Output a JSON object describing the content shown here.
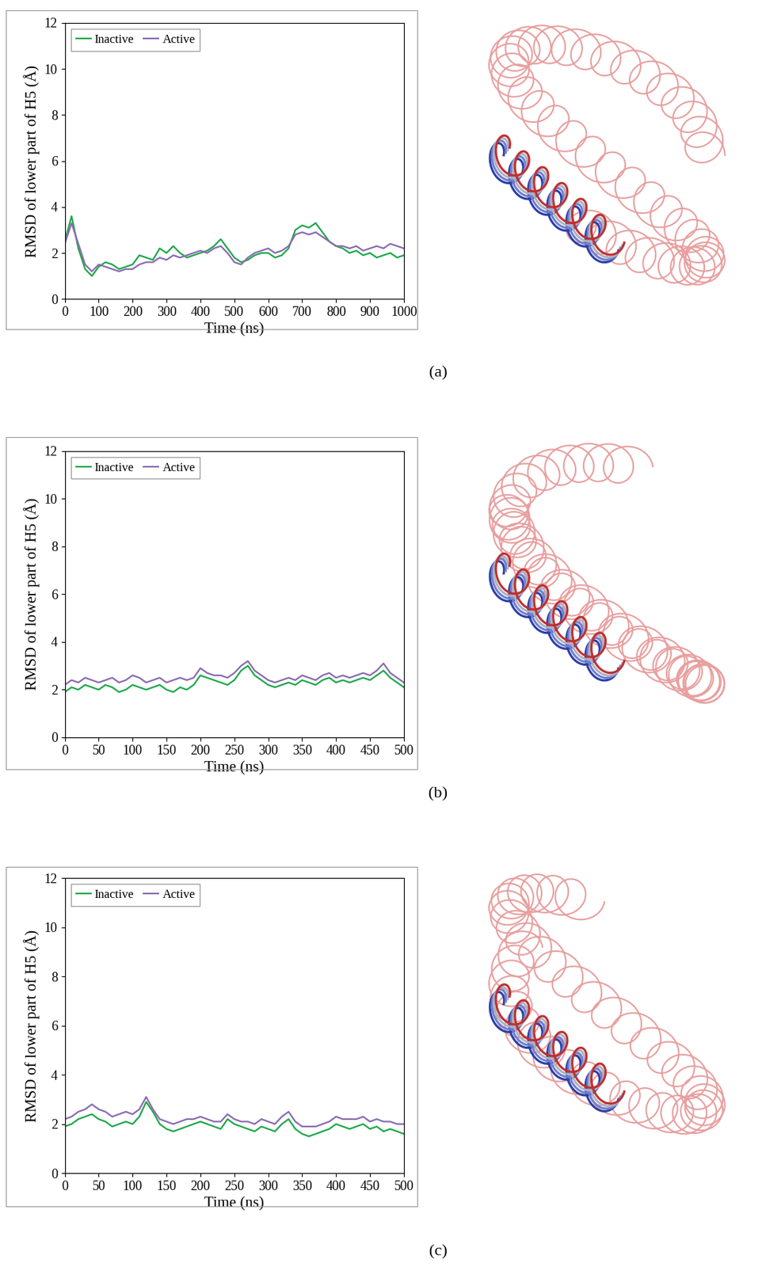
{
  "chart_data": [
    {
      "type": "line",
      "annotation": "(a)",
      "x_label": "Time (ns)",
      "y_label": "RMSD of lower part of H5 (Å)",
      "x": [
        0,
        20,
        40,
        60,
        80,
        100,
        120,
        140,
        160,
        180,
        200,
        220,
        240,
        260,
        280,
        300,
        320,
        340,
        360,
        380,
        400,
        420,
        440,
        460,
        480,
        500,
        520,
        540,
        560,
        580,
        600,
        620,
        640,
        660,
        680,
        700,
        720,
        740,
        760,
        780,
        800,
        820,
        840,
        860,
        880,
        900,
        920,
        940,
        960,
        980,
        1000
      ],
      "series": [
        {
          "name": "Inactive",
          "color": "#1fa84a",
          "values": [
            2.5,
            3.6,
            2.2,
            1.3,
            1.0,
            1.4,
            1.6,
            1.5,
            1.3,
            1.4,
            1.5,
            1.9,
            1.8,
            1.7,
            2.2,
            2.0,
            2.3,
            2.0,
            1.8,
            1.9,
            2.0,
            2.1,
            2.3,
            2.6,
            2.2,
            1.8,
            1.6,
            1.7,
            1.9,
            2.0,
            2.0,
            1.8,
            1.9,
            2.2,
            3.0,
            3.2,
            3.1,
            3.3,
            2.9,
            2.5,
            2.3,
            2.2,
            2.0,
            2.1,
            1.9,
            2.0,
            1.8,
            1.9,
            2.0,
            1.8,
            1.9
          ]
        },
        {
          "name": "Active",
          "color": "#8a6bb0",
          "values": [
            2.4,
            3.3,
            2.4,
            1.5,
            1.2,
            1.5,
            1.4,
            1.3,
            1.2,
            1.3,
            1.3,
            1.5,
            1.6,
            1.6,
            1.8,
            1.7,
            1.9,
            1.8,
            1.9,
            2.0,
            2.1,
            2.0,
            2.2,
            2.3,
            2.0,
            1.6,
            1.5,
            1.8,
            2.0,
            2.1,
            2.2,
            2.0,
            2.1,
            2.3,
            2.8,
            2.9,
            2.8,
            2.9,
            2.7,
            2.5,
            2.3,
            2.3,
            2.2,
            2.3,
            2.1,
            2.2,
            2.3,
            2.2,
            2.4,
            2.3,
            2.2
          ]
        }
      ],
      "xlim": [
        0,
        1000
      ],
      "xticks": [
        0,
        100,
        200,
        300,
        400,
        500,
        600,
        700,
        800,
        900,
        1000
      ],
      "ylim": [
        0,
        12
      ],
      "yticks": [
        0,
        2,
        4,
        6,
        8,
        10,
        12
      ],
      "legend": "upper left"
    },
    {
      "type": "line",
      "annotation": "(b)",
      "x_label": "Time (ns)",
      "y_label": "RMSD of lower part of H5 (Å)",
      "x": [
        0,
        10,
        20,
        30,
        40,
        50,
        60,
        70,
        80,
        90,
        100,
        110,
        120,
        130,
        140,
        150,
        160,
        170,
        180,
        190,
        200,
        210,
        220,
        230,
        240,
        250,
        260,
        270,
        280,
        290,
        300,
        310,
        320,
        330,
        340,
        350,
        360,
        370,
        380,
        390,
        400,
        410,
        420,
        430,
        440,
        450,
        460,
        470,
        480,
        490,
        500
      ],
      "series": [
        {
          "name": "Inactive",
          "color": "#1fa84a",
          "values": [
            1.9,
            2.1,
            2.0,
            2.2,
            2.1,
            2.0,
            2.2,
            2.1,
            1.9,
            2.0,
            2.2,
            2.1,
            2.0,
            2.1,
            2.2,
            2.0,
            1.9,
            2.1,
            2.0,
            2.2,
            2.6,
            2.5,
            2.4,
            2.3,
            2.2,
            2.4,
            2.8,
            3.0,
            2.6,
            2.4,
            2.2,
            2.1,
            2.2,
            2.3,
            2.2,
            2.4,
            2.3,
            2.2,
            2.4,
            2.5,
            2.3,
            2.4,
            2.3,
            2.4,
            2.5,
            2.4,
            2.6,
            2.8,
            2.5,
            2.3,
            2.1
          ]
        },
        {
          "name": "Active",
          "color": "#8a6bb0",
          "values": [
            2.2,
            2.4,
            2.3,
            2.5,
            2.4,
            2.3,
            2.4,
            2.5,
            2.3,
            2.4,
            2.6,
            2.5,
            2.3,
            2.4,
            2.5,
            2.3,
            2.4,
            2.5,
            2.4,
            2.5,
            2.9,
            2.7,
            2.6,
            2.6,
            2.5,
            2.7,
            3.0,
            3.2,
            2.8,
            2.6,
            2.4,
            2.3,
            2.4,
            2.5,
            2.4,
            2.6,
            2.5,
            2.4,
            2.6,
            2.7,
            2.5,
            2.6,
            2.5,
            2.6,
            2.7,
            2.6,
            2.8,
            3.1,
            2.7,
            2.5,
            2.3
          ]
        }
      ],
      "xlim": [
        0,
        500
      ],
      "xticks": [
        0,
        50,
        100,
        150,
        200,
        250,
        300,
        350,
        400,
        450,
        500
      ],
      "ylim": [
        0,
        12
      ],
      "yticks": [
        0,
        2,
        4,
        6,
        8,
        10,
        12
      ],
      "legend": "upper left"
    },
    {
      "type": "line",
      "annotation": "(c)",
      "x_label": "Time (ns)",
      "y_label": "RMSD of lower part of H5 (Å)",
      "x": [
        0,
        10,
        20,
        30,
        40,
        50,
        60,
        70,
        80,
        90,
        100,
        110,
        120,
        130,
        140,
        150,
        160,
        170,
        180,
        190,
        200,
        210,
        220,
        230,
        240,
        250,
        260,
        270,
        280,
        290,
        300,
        310,
        320,
        330,
        340,
        350,
        360,
        370,
        380,
        390,
        400,
        410,
        420,
        430,
        440,
        450,
        460,
        470,
        480,
        490,
        500
      ],
      "series": [
        {
          "name": "Inactive",
          "color": "#1fa84a",
          "values": [
            1.9,
            2.0,
            2.2,
            2.3,
            2.4,
            2.2,
            2.1,
            1.9,
            2.0,
            2.1,
            2.0,
            2.3,
            2.9,
            2.5,
            2.0,
            1.8,
            1.7,
            1.8,
            1.9,
            2.0,
            2.1,
            2.0,
            1.9,
            1.8,
            2.2,
            2.0,
            1.9,
            1.8,
            1.7,
            1.9,
            1.8,
            1.7,
            2.0,
            2.2,
            1.8,
            1.6,
            1.5,
            1.6,
            1.7,
            1.8,
            2.0,
            1.9,
            1.8,
            1.9,
            2.0,
            1.8,
            1.9,
            1.7,
            1.8,
            1.7,
            1.6
          ]
        },
        {
          "name": "Active",
          "color": "#8a6bb0",
          "values": [
            2.2,
            2.3,
            2.5,
            2.6,
            2.8,
            2.6,
            2.5,
            2.3,
            2.4,
            2.5,
            2.4,
            2.6,
            3.1,
            2.6,
            2.2,
            2.1,
            2.0,
            2.1,
            2.2,
            2.2,
            2.3,
            2.2,
            2.1,
            2.1,
            2.4,
            2.2,
            2.1,
            2.1,
            2.0,
            2.2,
            2.1,
            2.0,
            2.3,
            2.5,
            2.1,
            1.9,
            1.9,
            1.9,
            2.0,
            2.1,
            2.3,
            2.2,
            2.2,
            2.2,
            2.3,
            2.1,
            2.2,
            2.1,
            2.1,
            2.0,
            2.0
          ]
        }
      ],
      "xlim": [
        0,
        500
      ],
      "xticks": [
        0,
        50,
        100,
        150,
        200,
        250,
        300,
        350,
        400,
        450,
        500
      ],
      "ylim": [
        0,
        12
      ],
      "yticks": [
        0,
        2,
        4,
        6,
        8,
        10,
        12
      ],
      "legend": "upper left"
    }
  ]
}
